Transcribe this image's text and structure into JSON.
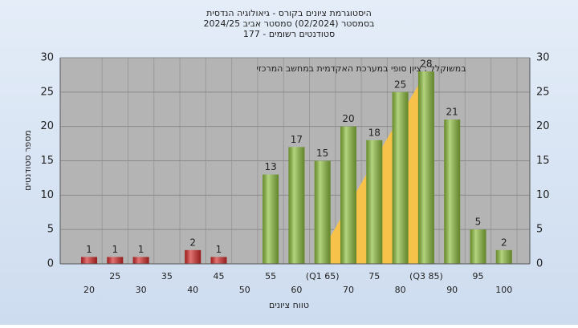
{
  "chart_data": {
    "type": "bar",
    "title": "היסטוגרמת ציונים בקורס - גיאולוגיה הנדסית",
    "subtitle": "בסמסטר (02/2024) סמסטר אביב 2024/25",
    "subtitle2": "סטודנטים רשומים - 177",
    "annotation": "במשוקלל : ציון סופי במערכת האקדמית במחשב המרכזי",
    "y_label": "מספר סטודנטים",
    "x_label": "טווח ציונים",
    "categories": [
      "20",
      "25",
      "30",
      "35",
      "40",
      "45",
      "50",
      "55",
      "60",
      "(Q1 65)",
      "70",
      "75",
      "80",
      "(Q3 85)",
      "90",
      "95",
      "100"
    ],
    "values": [
      1,
      1,
      1,
      0,
      2,
      1,
      0,
      13,
      17,
      15,
      20,
      18,
      25,
      28,
      21,
      5,
      2
    ],
    "colors": [
      "#d42a2a",
      "#d42a2a",
      "#d42a2a",
      "#d42a2a",
      "#d42a2a",
      "#d42a2a",
      "#d42a2a",
      "#8cbd3c",
      "#8cbd3c",
      "#8cbd3c",
      "#8cbd3c",
      "#8cbd3c",
      "#8cbd3c",
      "#8cbd3c",
      "#8cbd3c",
      "#8cbd3c",
      "#8cbd3c"
    ],
    "iqr_color": "#f7c24a",
    "ylim": [
      0,
      30
    ],
    "yticks": [
      0,
      5,
      10,
      15,
      20,
      25,
      30
    ],
    "grid": true
  }
}
